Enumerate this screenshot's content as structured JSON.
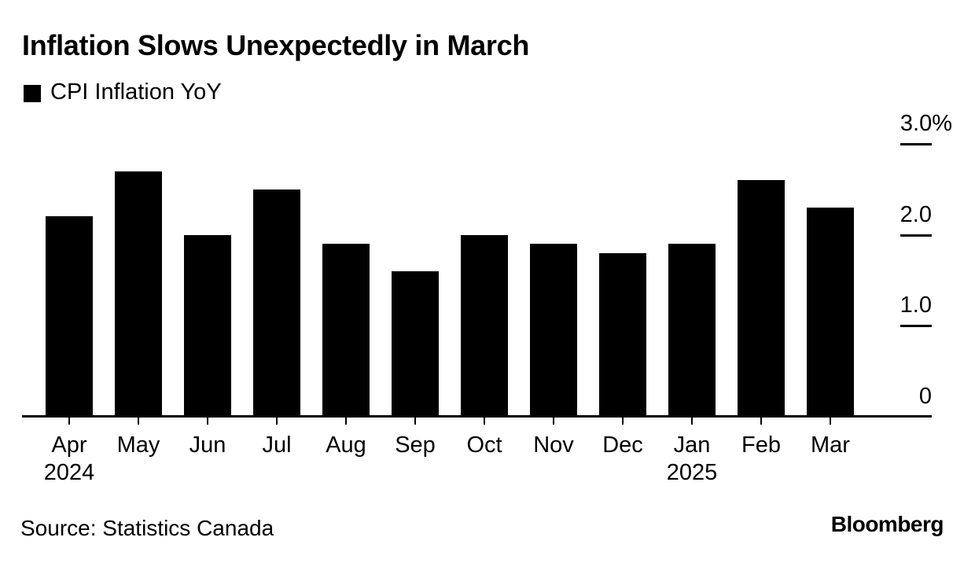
{
  "chart": {
    "title": "Inflation Slows Unexpectedly in March",
    "legend_label": "CPI Inflation YoY",
    "source": "Source: Statistics Canada",
    "brand": "Bloomberg",
    "bar_color": "#000000",
    "background": "#ffffff",
    "text_color": "#000000"
  },
  "chart_data": {
    "type": "bar",
    "title": "Inflation Slows Unexpectedly in March",
    "series_name": "CPI Inflation YoY",
    "categories": [
      "Apr",
      "May",
      "Jun",
      "Jul",
      "Aug",
      "Sep",
      "Oct",
      "Nov",
      "Dec",
      "Jan",
      "Feb",
      "Mar"
    ],
    "year_labels": [
      {
        "index": 0,
        "text": "2024"
      },
      {
        "index": 9,
        "text": "2025"
      }
    ],
    "values": [
      2.2,
      2.7,
      2.0,
      2.5,
      1.9,
      1.6,
      2.0,
      1.9,
      1.8,
      1.9,
      2.6,
      2.3
    ],
    "unit": "%",
    "xlabel": "",
    "ylabel": "",
    "ylim": [
      0,
      3.0
    ],
    "yticks": [
      3.0,
      2.0,
      1.0,
      0
    ],
    "ytick_labels": [
      "3.0%",
      "2.0",
      "1.0",
      "0"
    ],
    "axis_side": "right",
    "grid": false,
    "legend_position": "top-left",
    "source": "Source: Statistics Canada",
    "brand": "Bloomberg"
  }
}
